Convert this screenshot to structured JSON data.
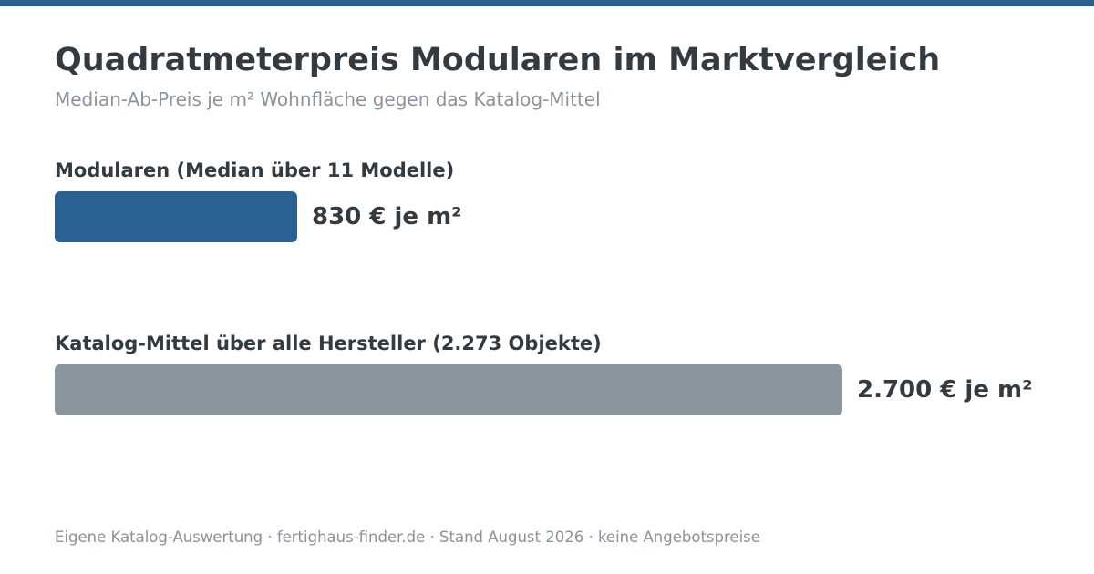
{
  "header": {
    "title": "Quadratmeterpreis Modularen im Marktvergleich",
    "subtitle": "Median-Ab-Preis je m² Wohnfläche gegen das Katalog-Mittel"
  },
  "chart_data": {
    "type": "bar",
    "orientation": "horizontal",
    "categories": [
      "Modularen (Median über 11 Modelle)",
      "Katalog-Mittel über alle Hersteller (2.273 Objekte)"
    ],
    "values": [
      830,
      2700
    ],
    "value_labels": [
      "830 € je m²",
      "2.700 € je m²"
    ],
    "colors": [
      "#2a6190",
      "#8a949c"
    ],
    "unit": "€ je m²",
    "xlim": [
      0,
      2700
    ],
    "grid": false,
    "legend": "none"
  },
  "footer": {
    "text": "Eigene Katalog-Auswertung · fertighaus-finder.de · Stand August 2026 · keine Angebotspreise"
  },
  "colors": {
    "accent": "#2a6190",
    "comparison": "#8a949c",
    "text": "#333a40",
    "muted": "#8a939b"
  }
}
